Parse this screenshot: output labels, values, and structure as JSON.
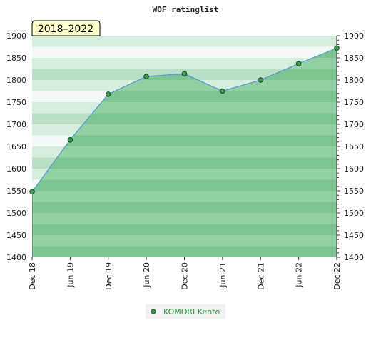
{
  "chart_data": {
    "type": "area",
    "title": "WOF ratinglist",
    "badge": "2018–2022",
    "xlabel": "",
    "ylabel": "",
    "ylim": [
      1400,
      1900
    ],
    "yticks": [
      1400,
      1450,
      1500,
      1550,
      1600,
      1650,
      1700,
      1750,
      1800,
      1850,
      1900
    ],
    "ytick_labels": [
      "1400",
      "1450",
      "1500",
      "1550",
      "1600",
      "1650",
      "1700",
      "1750",
      "1800",
      "1850",
      "1900"
    ],
    "categories": [
      "Dec 18",
      "Jun 19",
      "Dec 19",
      "Jun 20",
      "Dec 20",
      "Jun 21",
      "Dec 21",
      "Jun 22",
      "Dec 22"
    ],
    "series": [
      {
        "name": "KOMORI Kento",
        "values": [
          1548,
          1665,
          1768,
          1808,
          1814,
          1775,
          1800,
          1837,
          1872
        ]
      }
    ],
    "legend": "bottom-center",
    "grid": true,
    "colors": {
      "line": "#5b9bd5",
      "area": "#7fc792",
      "marker": "#3a9b4e",
      "band_dark": "#b8dfc3",
      "band_light": "#f2f9f4",
      "badge_bg": "#ffffcc"
    }
  }
}
